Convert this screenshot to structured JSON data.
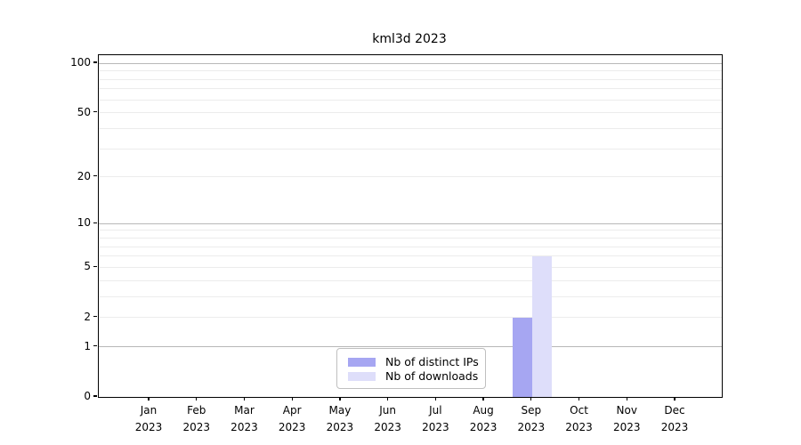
{
  "title": "kml3d 2023",
  "chart_data": {
    "type": "bar",
    "title": "kml3d 2023",
    "categories": [
      {
        "month": "Jan",
        "year": "2023"
      },
      {
        "month": "Feb",
        "year": "2023"
      },
      {
        "month": "Mar",
        "year": "2023"
      },
      {
        "month": "Apr",
        "year": "2023"
      },
      {
        "month": "May",
        "year": "2023"
      },
      {
        "month": "Jun",
        "year": "2023"
      },
      {
        "month": "Jul",
        "year": "2023"
      },
      {
        "month": "Aug",
        "year": "2023"
      },
      {
        "month": "Sep",
        "year": "2023"
      },
      {
        "month": "Oct",
        "year": "2023"
      },
      {
        "month": "Nov",
        "year": "2023"
      },
      {
        "month": "Dec",
        "year": "2023"
      }
    ],
    "series": [
      {
        "name": "Nb of distinct IPs",
        "color": "#a6a6f2",
        "values": [
          0,
          0,
          0,
          0,
          0,
          0,
          0,
          0,
          2,
          0,
          0,
          0
        ]
      },
      {
        "name": "Nb of downloads",
        "color": "#dedefa",
        "values": [
          0,
          0,
          0,
          0,
          0,
          0,
          0,
          0,
          6,
          0,
          0,
          0
        ]
      }
    ],
    "xlabel": "",
    "ylabel": "",
    "yscale": "log1p",
    "ylim": [
      0,
      112
    ],
    "yticks": [
      0,
      1,
      2,
      5,
      10,
      20,
      50,
      100
    ],
    "yminor_gridlines": [
      3,
      4,
      6,
      7,
      8,
      9,
      30,
      40,
      60,
      70,
      80,
      90
    ],
    "grid": "horizontal",
    "legend_position": "bottom-center-inside",
    "colors": {
      "axis": "#000000",
      "major_grid": "#b8b8b8",
      "minor_grid": "#ececec",
      "background": "#ffffff"
    }
  }
}
